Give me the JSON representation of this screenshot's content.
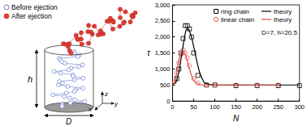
{
  "chart_data": {
    "type": "scatter",
    "x_label": "N",
    "y_label": "τ",
    "annotation": "D=7, h=20.5",
    "xlim": [
      0,
      300
    ],
    "xticks": [
      0,
      50,
      100,
      150,
      200,
      250,
      300
    ],
    "ylim": [
      0,
      3000
    ],
    "yticks": [
      0,
      500,
      1000,
      1500,
      2000,
      2500,
      3000
    ],
    "grid": false,
    "legend": "upper right",
    "series": [
      {
        "name": "ring chain",
        "type": "scatter",
        "marker": "square",
        "color": "#000000",
        "x": [
          10,
          15,
          20,
          25,
          30,
          35,
          40,
          45,
          50,
          60,
          80,
          100,
          150,
          200,
          250,
          300
        ],
        "values": [
          700,
          1000,
          1500,
          1950,
          2350,
          2350,
          2250,
          2000,
          1500,
          800,
          500,
          500,
          480,
          480,
          480,
          480
        ]
      },
      {
        "name": "theory",
        "type": "line",
        "line_style": "solid",
        "color": "#000000",
        "x": [
          0,
          10,
          20,
          30,
          35,
          40,
          50,
          60,
          70,
          80,
          100,
          150,
          200,
          250,
          300
        ],
        "values": [
          500,
          650,
          1300,
          2100,
          2250,
          2200,
          1700,
          1100,
          700,
          540,
          500,
          500,
          500,
          500,
          500
        ]
      },
      {
        "name": "linear chain",
        "type": "scatter",
        "marker": "circle",
        "color": "#e0504a",
        "x": [
          5,
          10,
          15,
          20,
          25,
          30,
          35,
          40,
          50,
          60,
          80,
          100,
          150,
          200,
          250
        ],
        "values": [
          600,
          900,
          1200,
          1450,
          1600,
          1500,
          1350,
          1100,
          700,
          560,
          500,
          500,
          500,
          500,
          500
        ]
      },
      {
        "name": "theory",
        "type": "line",
        "line_style": "solid",
        "color": "#e0504a",
        "x": [
          0,
          5,
          10,
          15,
          20,
          25,
          30,
          35,
          40,
          50,
          60,
          70,
          100,
          150,
          200,
          250
        ],
        "values": [
          500,
          600,
          900,
          1250,
          1500,
          1560,
          1450,
          1250,
          1000,
          650,
          530,
          500,
          500,
          500,
          500,
          500
        ]
      }
    ]
  },
  "diagram": {
    "legend": [
      {
        "label": "Before ejection",
        "color": "#6a7fd0",
        "marker": "open circle"
      },
      {
        "label": "After ejection",
        "color": "#e03c31",
        "marker": "filled circle"
      }
    ],
    "labels": {
      "height": "h",
      "diameter": "D",
      "axes": [
        "z",
        "y",
        "x"
      ]
    }
  }
}
